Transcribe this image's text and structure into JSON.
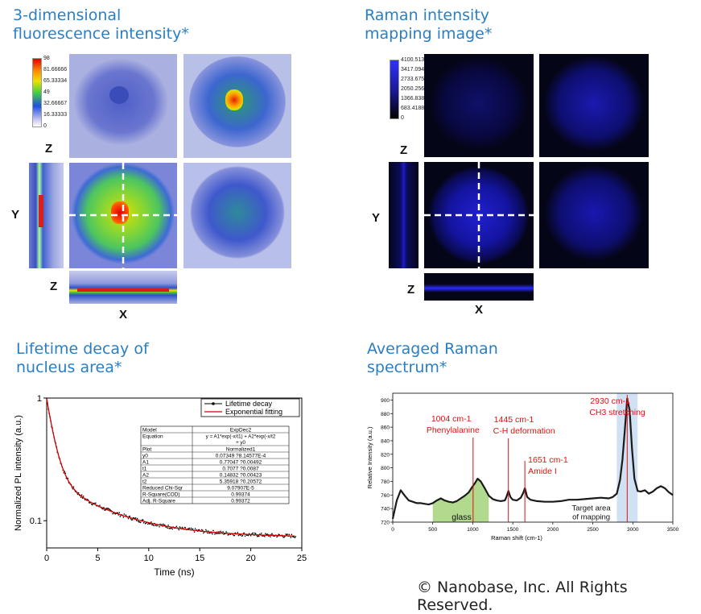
{
  "panels": {
    "fluorescence": {
      "title_line1": "3-dimensional",
      "title_line2": "fluorescence intensity*",
      "axis_z_top": "Z",
      "axis_y": "Y",
      "axis_z_bottom": "Z",
      "axis_x": "X",
      "colorbar_ticks": [
        "98",
        "81.66666",
        "65.33334",
        "49",
        "32.66667",
        "16.33333",
        "0"
      ]
    },
    "raman_map": {
      "title_line1": "Raman intensity",
      "title_line2": "mapping image*",
      "axis_z_top": "Z",
      "axis_y": "Y",
      "axis_z_bottom": "Z",
      "axis_x": "X",
      "colorbar_ticks": [
        "4100.513",
        "3417.094",
        "2733.675",
        "2050.256",
        "1366.838",
        "683.4188",
        "0"
      ]
    },
    "lifetime": {
      "title_line1": "Lifetime decay of",
      "title_line2": "nucleus area*"
    },
    "raman_spectrum": {
      "title_line1": "Averaged Raman",
      "title_line2": "spectrum*"
    }
  },
  "copyright": "© Nanobase, Inc. All Rights Reserved.",
  "colors": {
    "title_blue": "#2a7fc4",
    "fit_red": "#d00000",
    "annotation_red": "#e01010",
    "glass_green": "#7dc242",
    "target_blue": "#a8c8e8"
  },
  "chart_data": [
    {
      "type": "scatter",
      "id": "lifetime_decay",
      "xlabel": "Time (ns)",
      "ylabel": "Normalized PL intensity (a.u.)",
      "xlim": [
        0,
        25
      ],
      "ylim": [
        0.06,
        1
      ],
      "yscale": "log",
      "x_ticks": [
        "0",
        "5",
        "10",
        "15",
        "20",
        "25"
      ],
      "y_ticks": [
        "1",
        "0.1"
      ],
      "legend": [
        "Lifetime decay",
        "Exponential fitting"
      ],
      "fit": {
        "y0": 0.07349,
        "A1": 0.77047,
        "t1": 0.7077,
        "A2": 0.14832,
        "t2": 5.35918
      },
      "fit_table": [
        [
          "Model",
          "ExpDec2"
        ],
        [
          "Equation",
          "y = A1*exp(-x/t1) + A2*exp(-x/t2) + y0"
        ],
        [
          "Plot",
          "Normalized1"
        ],
        [
          "y0",
          "0.07349 ?8.14577E-4"
        ],
        [
          "A1",
          "0.77047 ?0.00492"
        ],
        [
          "t1",
          "0.7077 ?0.0087"
        ],
        [
          "A2",
          "0.14832 ?0.00423"
        ],
        [
          "t2",
          "5.35918 ?0.20572"
        ],
        [
          "Reduced Chi-Sqr",
          "9.07907E-5"
        ],
        [
          "R-Square(COD)",
          "0.99374"
        ],
        [
          "Adj. R-Square",
          "0.99372"
        ]
      ]
    },
    {
      "type": "line",
      "id": "raman_spectrum",
      "xlabel": "Raman shift (cm-1)",
      "ylabel": "Relative Intensity (a.u.)",
      "xlim": [
        0,
        3500
      ],
      "ylim": [
        720,
        910
      ],
      "x_ticks": [
        "0",
        "500",
        "1000",
        "1500",
        "2000",
        "2500",
        "3000",
        "3500"
      ],
      "y_ticks": [
        "720",
        "740",
        "760",
        "780",
        "800",
        "820",
        "840",
        "860",
        "880",
        "900"
      ],
      "x": [
        0,
        50,
        100,
        150,
        200,
        250,
        300,
        350,
        400,
        450,
        500,
        550,
        600,
        650,
        700,
        750,
        800,
        850,
        900,
        950,
        1000,
        1030,
        1060,
        1100,
        1150,
        1200,
        1250,
        1300,
        1350,
        1400,
        1420,
        1445,
        1470,
        1500,
        1550,
        1600,
        1630,
        1651,
        1680,
        1720,
        1800,
        1900,
        2000,
        2100,
        2200,
        2300,
        2400,
        2500,
        2600,
        2700,
        2750,
        2800,
        2840,
        2870,
        2900,
        2930,
        2960,
        2990,
        3020,
        3060,
        3100,
        3150,
        3200,
        3250,
        3300,
        3350,
        3400,
        3450,
        3500
      ],
      "values": [
        725,
        752,
        767,
        759,
        752,
        750,
        748,
        748,
        747,
        746,
        748,
        752,
        755,
        752,
        750,
        749,
        751,
        755,
        759,
        764,
        773,
        778,
        784,
        780,
        770,
        759,
        754,
        752,
        751,
        752,
        757,
        766,
        757,
        753,
        752,
        756,
        763,
        770,
        757,
        753,
        751,
        750,
        750,
        751,
        753,
        753,
        754,
        755,
        756,
        755,
        757,
        762,
        782,
        812,
        855,
        902,
        885,
        828,
        784,
        766,
        765,
        767,
        762,
        765,
        770,
        773,
        770,
        764,
        760
      ],
      "annotations": [
        {
          "x": 1004,
          "lines": [
            "1004 cm-1",
            "Phenylalanine"
          ]
        },
        {
          "x": 1445,
          "lines": [
            "1445 cm-1",
            "C-H deformation"
          ]
        },
        {
          "x": 1651,
          "lines": [
            "1651 cm-1",
            "Amide I"
          ]
        },
        {
          "x": 2930,
          "lines": [
            "2930 cm-1",
            "CH3 stretching"
          ]
        }
      ],
      "regions": [
        {
          "label": "glass",
          "from": 500,
          "to": 1200
        },
        {
          "label": "Target area of mapping",
          "from": 2800,
          "to": 3060
        }
      ]
    }
  ]
}
